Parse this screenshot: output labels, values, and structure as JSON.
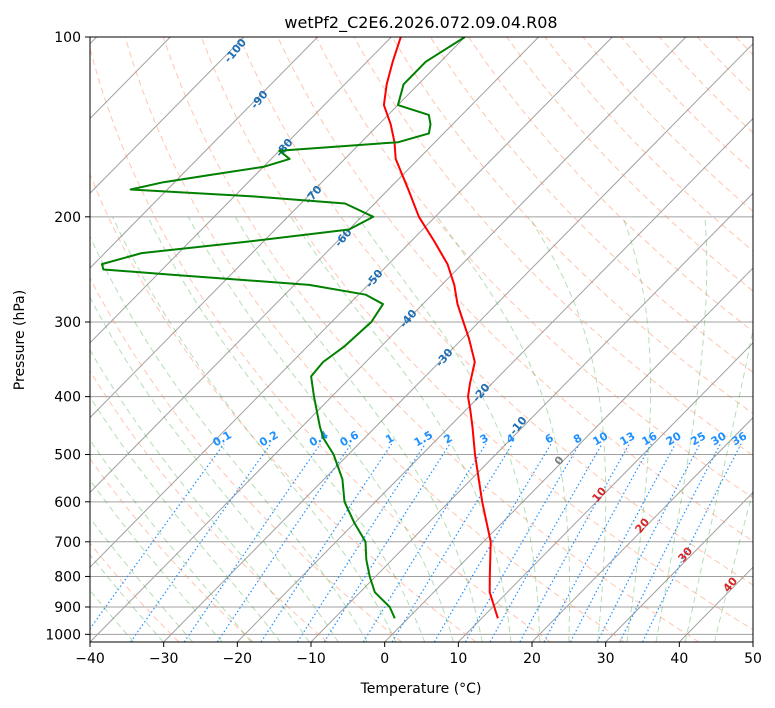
{
  "chart_data": {
    "type": "line",
    "title": "wetPf2_C2E6.2026.072.09.04.R08",
    "xlabel": "Temperature (°C)",
    "ylabel": "Pressure (hPa)",
    "xlim": [
      -40,
      50
    ],
    "ylim": [
      1030,
      100
    ],
    "y_scale": "log",
    "grid": true,
    "x_ticks": [
      -40,
      -30,
      -20,
      -10,
      0,
      10,
      20,
      30,
      40,
      50
    ],
    "y_ticks": [
      100,
      200,
      300,
      400,
      500,
      600,
      700,
      800,
      900,
      1000
    ],
    "colors": {
      "temperature": "#ff0000",
      "dewpoint": "#008000",
      "isotherm": "#a0a0a0",
      "dry_adiabat": "#ff7f50",
      "moist_adiabat": "#2ca02c",
      "mixing_ratio": "#1e90ff",
      "isotherm_zero": "#d2b48c"
    },
    "series": [
      {
        "key": "temperature",
        "p": [
          940,
          900,
          850,
          800,
          700,
          600,
          500,
          450,
          420,
          400,
          380,
          350,
          320,
          300,
          280,
          260,
          240,
          220,
          200,
          180,
          160,
          150,
          140,
          130,
          120,
          110,
          100
        ],
        "t": [
          12.2,
          10.2,
          7.6,
          5.5,
          1.0,
          -5.5,
          -12.8,
          -16.8,
          -19.5,
          -21.5,
          -23.0,
          -25.2,
          -29.1,
          -32.1,
          -35.3,
          -38.3,
          -42.0,
          -46.8,
          -52.2,
          -57.3,
          -63.1,
          -65.5,
          -68.4,
          -71.9,
          -74.3,
          -76.5,
          -78.7
        ]
      },
      {
        "key": "dewpoint",
        "p": [
          940,
          900,
          850,
          800,
          750,
          700,
          650,
          600,
          550,
          500,
          470,
          450,
          400,
          370,
          350,
          330,
          300,
          280,
          270,
          260,
          250,
          245,
          240,
          230,
          220,
          210,
          200,
          190,
          185,
          180,
          175,
          170,
          165,
          160,
          155,
          150,
          145,
          140,
          135,
          130,
          120,
          110,
          100
        ],
        "t": [
          -1.8,
          -4.0,
          -8.0,
          -10.8,
          -13.5,
          -16.0,
          -20.1,
          -24.2,
          -27.5,
          -32.0,
          -35.5,
          -37.5,
          -42.4,
          -45.5,
          -45.8,
          -45.0,
          -44.6,
          -45.4,
          -49.0,
          -58.0,
          -78.0,
          -88.0,
          -88.9,
          -85.0,
          -72.0,
          -60.0,
          -58.4,
          -64.0,
          -77.0,
          -95.0,
          -91.5,
          -86.0,
          -80.0,
          -77.5,
          -80.0,
          -65.0,
          -62.0,
          -63.0,
          -64.5,
          -70.0,
          -72.0,
          -72.0,
          -70.0
        ]
      }
    ],
    "dry_adiabat_labels": [
      "-100",
      "-90",
      "-80",
      "-70",
      "-60",
      "-50",
      "-40",
      "-30",
      "-20",
      "-10",
      "0",
      "10",
      "20",
      "30",
      "40"
    ],
    "mixing_ratio_labels": [
      "0.1",
      "0.2",
      "0.4",
      "0.6",
      "1",
      "1.5",
      "2",
      "3",
      "4",
      "6",
      "8",
      "10",
      "13",
      "16",
      "20",
      "25",
      "30",
      "36"
    ]
  }
}
